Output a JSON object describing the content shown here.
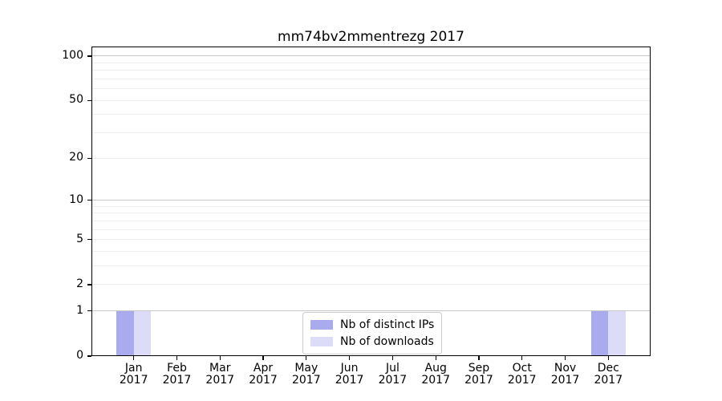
{
  "figure": {
    "background": "#ffffff",
    "text_color": "#000000",
    "spine_color": "#000000"
  },
  "chart_data": {
    "type": "bar",
    "title": "mm74bv2mmentrezg 2017",
    "months": [
      "Jan",
      "Feb",
      "Mar",
      "Apr",
      "May",
      "Jun",
      "Jul",
      "Aug",
      "Sep",
      "Oct",
      "Nov",
      "Dec"
    ],
    "year": "2017",
    "series": [
      {
        "name": "Nb of distinct IPs",
        "color": "#aaaaee",
        "values": [
          1,
          0,
          0,
          0,
          0,
          0,
          0,
          0,
          0,
          0,
          0,
          1
        ]
      },
      {
        "name": "Nb of downloads",
        "color": "#dcdcf8",
        "values": [
          1,
          0,
          0,
          0,
          0,
          0,
          0,
          0,
          0,
          0,
          0,
          1
        ]
      }
    ],
    "yscale": "log1p",
    "ylim": [
      0,
      116
    ],
    "yticks": [
      0,
      1,
      2,
      5,
      10,
      20,
      50,
      100
    ],
    "grid": {
      "major_values": [
        1,
        10,
        100
      ],
      "minor_values": [
        2,
        3,
        4,
        5,
        6,
        7,
        8,
        9,
        20,
        30,
        40,
        50,
        60,
        70,
        80,
        90
      ],
      "major_color": "#c6c6c6",
      "minor_color": "#ededed"
    },
    "legend": {
      "position": "lower center"
    },
    "xlabel": "",
    "ylabel": ""
  }
}
